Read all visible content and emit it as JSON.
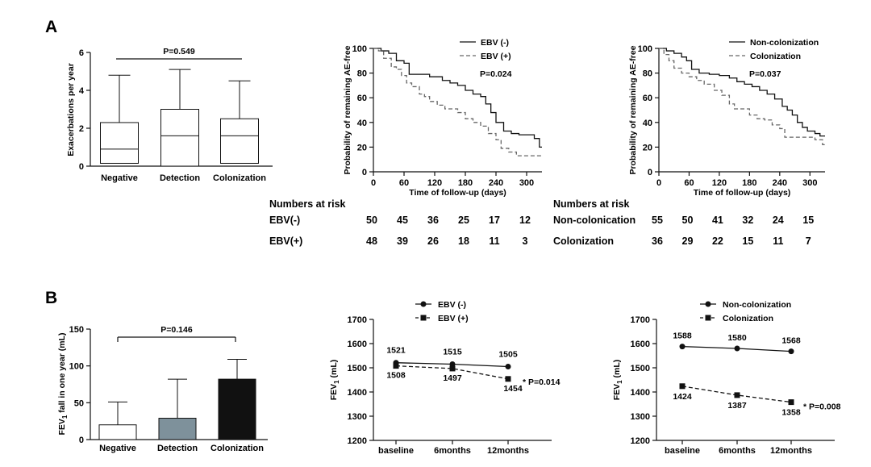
{
  "panel_labels": [
    "A",
    "B"
  ],
  "chart_data": [
    {
      "type": "box",
      "ylabel": "Exacerbations per year",
      "ylim": [
        0,
        6
      ],
      "yticks": [
        0,
        2,
        4,
        6
      ],
      "categories": [
        "Negative",
        "Detection",
        "Colonization"
      ],
      "boxes": [
        {
          "min": 0.1,
          "q1": 0.15,
          "median": 0.9,
          "q3": 2.3,
          "max": 4.8
        },
        {
          "min": 0.0,
          "q1": 0.0,
          "median": 1.6,
          "q3": 3.0,
          "max": 5.1
        },
        {
          "min": 0.1,
          "q1": 0.15,
          "median": 1.6,
          "q3": 2.5,
          "max": 4.5
        }
      ],
      "annotation": "P=0.549"
    },
    {
      "type": "line",
      "step": true,
      "xlabel": "Time of follow-up (days)",
      "ylabel": "Probability of remaining AE-free",
      "xlim": [
        0,
        330
      ],
      "ylim": [
        0,
        100
      ],
      "xticks": [
        0,
        60,
        120,
        180,
        240,
        300
      ],
      "yticks": [
        0,
        20,
        40,
        60,
        80,
        100
      ],
      "series": [
        {
          "name": "EBV (-)",
          "style": "solid",
          "points": [
            [
              0,
              100
            ],
            [
              15,
              98
            ],
            [
              30,
              96
            ],
            [
              45,
              90
            ],
            [
              60,
              88
            ],
            [
              70,
              79
            ],
            [
              90,
              79
            ],
            [
              110,
              77
            ],
            [
              125,
              77
            ],
            [
              135,
              74
            ],
            [
              150,
              72
            ],
            [
              165,
              70
            ],
            [
              180,
              66
            ],
            [
              195,
              63
            ],
            [
              210,
              61
            ],
            [
              220,
              55
            ],
            [
              230,
              48
            ],
            [
              240,
              40
            ],
            [
              255,
              33
            ],
            [
              270,
              31
            ],
            [
              285,
              30
            ],
            [
              300,
              30
            ],
            [
              315,
              27
            ],
            [
              325,
              20
            ],
            [
              330,
              20
            ]
          ]
        },
        {
          "name": "EBV (+)",
          "style": "dashed",
          "points": [
            [
              0,
              100
            ],
            [
              10,
              98
            ],
            [
              20,
              92
            ],
            [
              35,
              85
            ],
            [
              45,
              83
            ],
            [
              55,
              78
            ],
            [
              65,
              72
            ],
            [
              75,
              69
            ],
            [
              90,
              63
            ],
            [
              100,
              61
            ],
            [
              110,
              57
            ],
            [
              125,
              54
            ],
            [
              140,
              51
            ],
            [
              155,
              51
            ],
            [
              165,
              48
            ],
            [
              180,
              43
            ],
            [
              195,
              40
            ],
            [
              210,
              37
            ],
            [
              225,
              31
            ],
            [
              240,
              26
            ],
            [
              250,
              19
            ],
            [
              265,
              16
            ],
            [
              280,
              13
            ],
            [
              300,
              13
            ],
            [
              330,
              13
            ]
          ]
        }
      ],
      "annotation": "P=0.024"
    },
    {
      "type": "line",
      "step": true,
      "xlabel": "Time of follow-up (days)",
      "ylabel": "Probability of remaining AE-free",
      "xlim": [
        0,
        330
      ],
      "ylim": [
        0,
        100
      ],
      "xticks": [
        0,
        60,
        120,
        180,
        240,
        300
      ],
      "yticks": [
        0,
        20,
        40,
        60,
        80,
        100
      ],
      "series": [
        {
          "name": "Non-colonization",
          "style": "solid",
          "points": [
            [
              0,
              100
            ],
            [
              15,
              98
            ],
            [
              30,
              96
            ],
            [
              45,
              93
            ],
            [
              55,
              90
            ],
            [
              65,
              83
            ],
            [
              80,
              80
            ],
            [
              100,
              79
            ],
            [
              120,
              78
            ],
            [
              140,
              76
            ],
            [
              155,
              73
            ],
            [
              170,
              71
            ],
            [
              185,
              69
            ],
            [
              200,
              66
            ],
            [
              215,
              63
            ],
            [
              230,
              59
            ],
            [
              245,
              53
            ],
            [
              255,
              50
            ],
            [
              265,
              46
            ],
            [
              275,
              40
            ],
            [
              285,
              36
            ],
            [
              295,
              33
            ],
            [
              310,
              31
            ],
            [
              320,
              29
            ],
            [
              330,
              29
            ]
          ]
        },
        {
          "name": "Colonization",
          "style": "dashed",
          "points": [
            [
              0,
              100
            ],
            [
              10,
              95
            ],
            [
              20,
              90
            ],
            [
              30,
              84
            ],
            [
              45,
              80
            ],
            [
              60,
              77
            ],
            [
              75,
              74
            ],
            [
              90,
              71
            ],
            [
              110,
              66
            ],
            [
              125,
              62
            ],
            [
              140,
              55
            ],
            [
              150,
              51
            ],
            [
              165,
              51
            ],
            [
              180,
              46
            ],
            [
              195,
              43
            ],
            [
              210,
              42
            ],
            [
              225,
              38
            ],
            [
              240,
              35
            ],
            [
              250,
              28
            ],
            [
              270,
              28
            ],
            [
              290,
              28
            ],
            [
              310,
              26
            ],
            [
              325,
              22
            ],
            [
              330,
              22
            ]
          ]
        }
      ],
      "annotation": "P=0.037"
    },
    {
      "type": "bar",
      "ylabel": "FEV1 fall in one year (mL)",
      "ylim": [
        0,
        150
      ],
      "yticks": [
        0,
        50,
        100,
        150
      ],
      "categories": [
        "Negative",
        "Detection",
        "Colonization"
      ],
      "values": [
        20,
        29,
        82
      ],
      "error_upper": [
        51,
        82,
        109
      ],
      "colors": [
        "#ffffff",
        "#7e919b",
        "#111111"
      ],
      "annotation": "P=0.146"
    },
    {
      "type": "line",
      "ylabel": "FEV1 (mL)",
      "ylim": [
        1200,
        1700
      ],
      "yticks": [
        1200,
        1300,
        1400,
        1500,
        1600,
        1700
      ],
      "categories": [
        "baseline",
        "6months",
        "12months"
      ],
      "series": [
        {
          "name": "EBV (-)",
          "style": "solid",
          "marker": "circle",
          "values": [
            1521,
            1515,
            1505
          ]
        },
        {
          "name": "EBV (+)",
          "style": "dashed",
          "marker": "square",
          "values": [
            1508,
            1497,
            1454
          ]
        }
      ],
      "annotation": "* P=0.014"
    },
    {
      "type": "line",
      "ylabel": "FEV1 (mL)",
      "ylim": [
        1200,
        1700
      ],
      "yticks": [
        1200,
        1300,
        1400,
        1500,
        1600,
        1700
      ],
      "categories": [
        "baseline",
        "6months",
        "12months"
      ],
      "series": [
        {
          "name": "Non-colonization",
          "style": "solid",
          "marker": "circle",
          "values": [
            1588,
            1580,
            1568
          ]
        },
        {
          "name": "Colonization",
          "style": "dashed",
          "marker": "square",
          "values": [
            1424,
            1387,
            1358
          ]
        }
      ],
      "annotation": "* P=0.008"
    }
  ],
  "risk_tables": [
    {
      "header": "Numbers at risk",
      "rows": [
        {
          "label": "EBV(-)",
          "values": [
            50,
            45,
            36,
            25,
            17,
            12
          ]
        },
        {
          "label": "EBV(+)",
          "values": [
            48,
            39,
            26,
            18,
            11,
            3
          ]
        }
      ]
    },
    {
      "header": "Numbers at risk",
      "rows": [
        {
          "label": "Non-colonication",
          "values": [
            55,
            50,
            41,
            32,
            24,
            15
          ]
        },
        {
          "label": "Colonization",
          "values": [
            36,
            29,
            22,
            15,
            11,
            7
          ]
        }
      ]
    }
  ]
}
